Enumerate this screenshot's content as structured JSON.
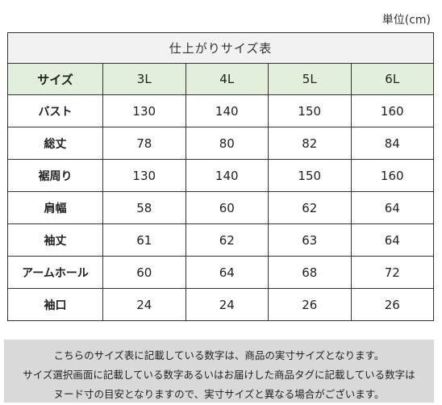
{
  "unit_label": "単位(cm)",
  "table": {
    "title": "仕上がりサイズ表",
    "header_label": "サイズ",
    "sizes": [
      "3L",
      "4L",
      "5L",
      "6L"
    ],
    "rows": [
      {
        "label": "バスト",
        "values": [
          "130",
          "140",
          "150",
          "160"
        ]
      },
      {
        "label": "総丈",
        "values": [
          "78",
          "80",
          "82",
          "84"
        ]
      },
      {
        "label": "裾周り",
        "values": [
          "130",
          "140",
          "150",
          "160"
        ]
      },
      {
        "label": "肩幅",
        "values": [
          "58",
          "60",
          "62",
          "64"
        ]
      },
      {
        "label": "袖丈",
        "values": [
          "61",
          "62",
          "63",
          "64"
        ]
      },
      {
        "label": "アームホール",
        "values": [
          "60",
          "64",
          "68",
          "72"
        ]
      },
      {
        "label": "袖口",
        "values": [
          "24",
          "24",
          "26",
          "26"
        ]
      }
    ]
  },
  "notice": {
    "lines": [
      "こちらのサイズ表に記載している数字は、商品の実寸サイズとなります。",
      "サイズ選択画面に記載している数字あるいはお届けした商品タグに記載している数字は",
      "ヌード寸の目安となりますので、実寸サイズと異なる場合がございます。"
    ]
  }
}
